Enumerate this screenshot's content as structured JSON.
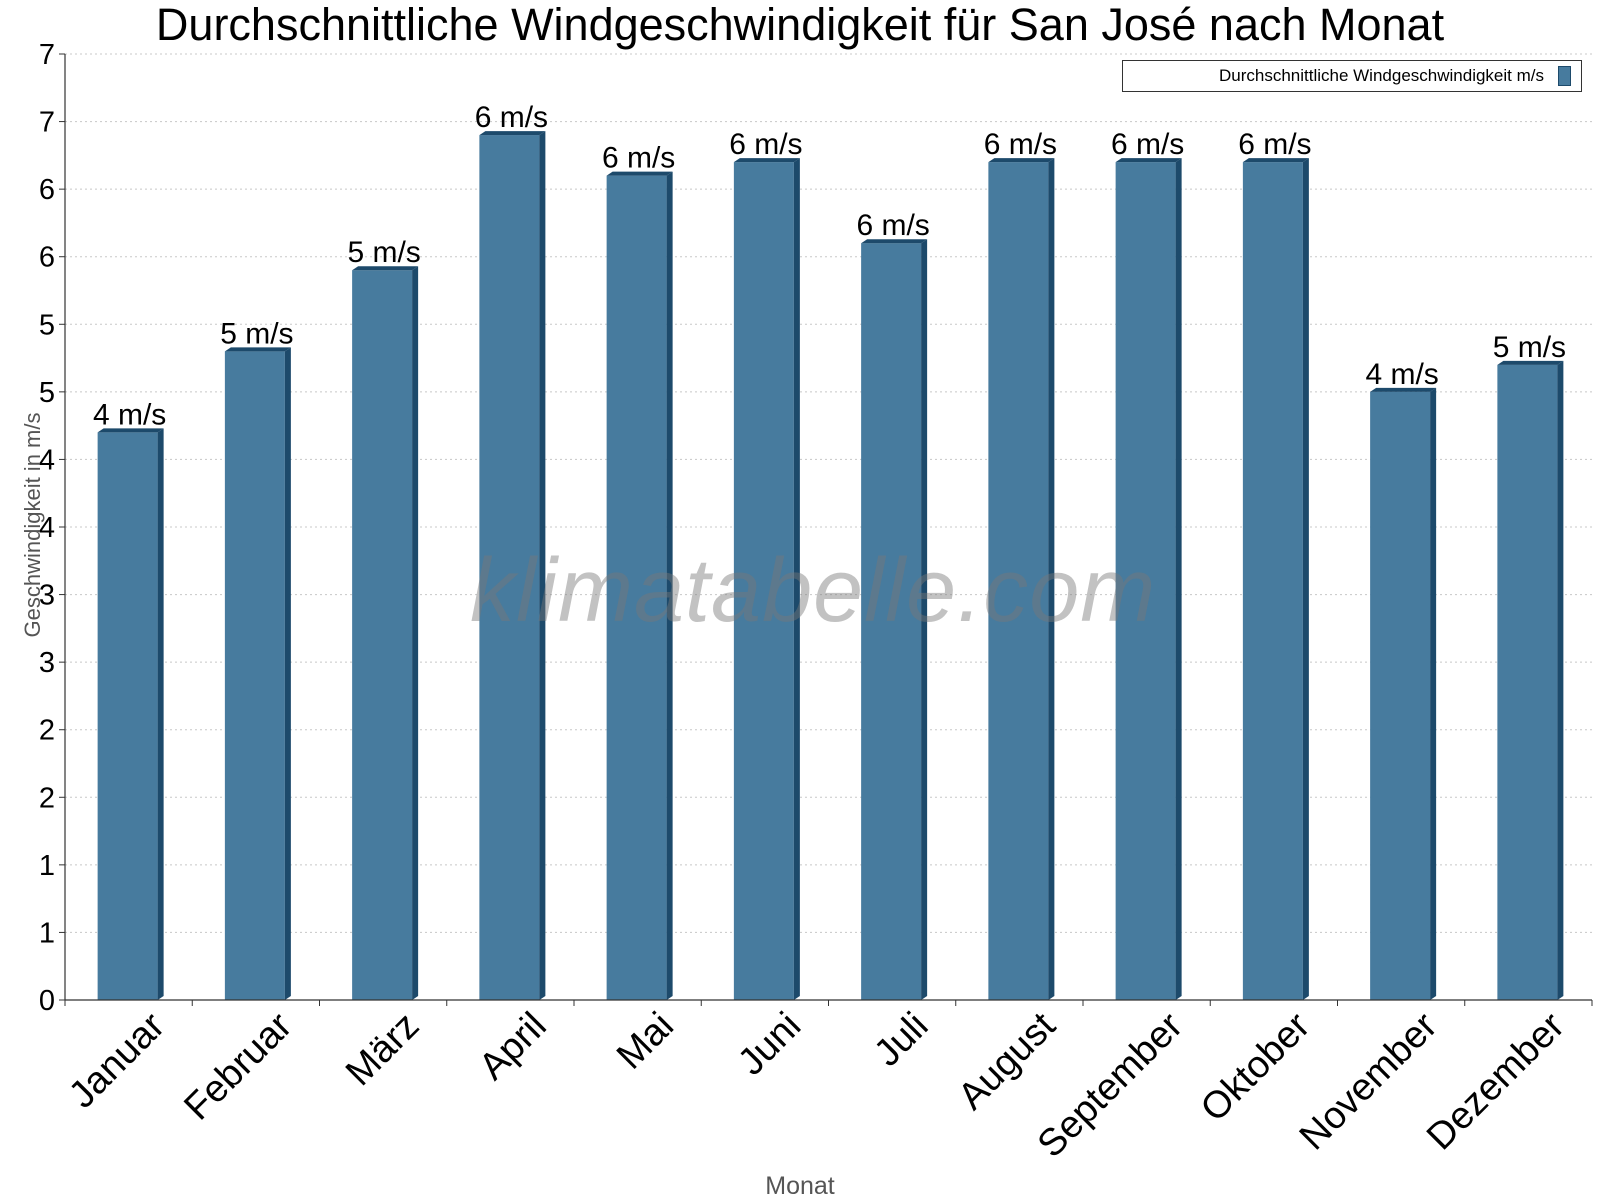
{
  "chart_data": {
    "type": "bar",
    "title": "Durchschnittliche Windgeschwindigkeit für San José nach Monat",
    "xlabel": "Monat",
    "ylabel": "Geschwindigkeit in m/s",
    "ylim": [
      0,
      7
    ],
    "y_tick_values": [
      0,
      0.5,
      1,
      1.5,
      2,
      2.5,
      3,
      3.5,
      4,
      4.5,
      5,
      5.5,
      6,
      6.5,
      7
    ],
    "y_tick_labels": [
      "0",
      "1",
      "1",
      "2",
      "2",
      "3",
      "3",
      "4",
      "4",
      "5",
      "5",
      "6",
      "6",
      "7",
      "7"
    ],
    "grid": true,
    "legend_position": "top-right",
    "categories": [
      "Januar",
      "Februar",
      "März",
      "April",
      "Mai",
      "Juni",
      "Juli",
      "August",
      "September",
      "Oktober",
      "November",
      "Dezember"
    ],
    "series": [
      {
        "name": "Durchschnittliche Windgeschwindigkeit m/s",
        "values": [
          4.2,
          4.8,
          5.4,
          6.4,
          6.1,
          6.2,
          5.6,
          6.2,
          6.2,
          6.2,
          4.5,
          4.7
        ],
        "data_labels": [
          "4 m/s",
          "5 m/s",
          "5 m/s",
          "6 m/s",
          "6 m/s",
          "6 m/s",
          "6 m/s",
          "6 m/s",
          "6 m/s",
          "6 m/s",
          "4 m/s",
          "5 m/s"
        ],
        "color": "#477b9e",
        "edge_color": "#1d4a6b"
      }
    ]
  },
  "watermark": "klimatabelle.com"
}
